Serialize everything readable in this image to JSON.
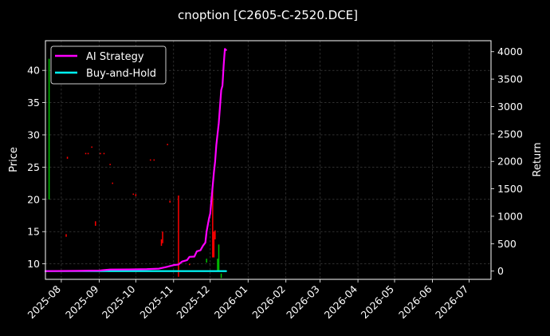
{
  "chart_data": {
    "type": "line",
    "title": "cnoption [C2605-C-2520.DCE]",
    "xlabel": "",
    "ylabel_left": "Price",
    "ylabel_right": "Return",
    "x_range": [
      "2025-07-19",
      "2026-07-19"
    ],
    "ylim_left": [
      7.6,
      44.6
    ],
    "ylim_right": [
      -150,
      4200
    ],
    "x_ticks": [
      "2025-08",
      "2025-09",
      "2025-10",
      "2025-11",
      "2025-12",
      "2026-01",
      "2026-02",
      "2026-03",
      "2026-04",
      "2026-05",
      "2026-06",
      "2026-07"
    ],
    "y_ticks_left": [
      10,
      15,
      20,
      25,
      30,
      35,
      40
    ],
    "y_ticks_right": [
      0,
      500,
      1000,
      1500,
      2000,
      2500,
      3000,
      3500,
      4000
    ],
    "grid": true,
    "legend_position": "top-left",
    "colors": {
      "background": "#000000",
      "grid": "#4a4a4a",
      "ai_strategy": "#ff00ff",
      "buy_and_hold": "#00ffff",
      "candle_up": "#00c000",
      "candle_down": "#ff0000"
    },
    "series": [
      {
        "name": "AI Strategy",
        "axis": "right",
        "points": [
          [
            "2025-07-19",
            0
          ],
          [
            "2025-08-15",
            5
          ],
          [
            "2025-09-01",
            10
          ],
          [
            "2025-09-10",
            28
          ],
          [
            "2025-09-25",
            30
          ],
          [
            "2025-10-10",
            35
          ],
          [
            "2025-10-20",
            45
          ],
          [
            "2025-10-26",
            75
          ],
          [
            "2025-11-01",
            110
          ],
          [
            "2025-11-05",
            120
          ],
          [
            "2025-11-08",
            175
          ],
          [
            "2025-11-12",
            200
          ],
          [
            "2025-11-14",
            260
          ],
          [
            "2025-11-18",
            265
          ],
          [
            "2025-11-20",
            360
          ],
          [
            "2025-11-23",
            380
          ],
          [
            "2025-11-25",
            460
          ],
          [
            "2025-11-27",
            520
          ],
          [
            "2025-11-28",
            720
          ],
          [
            "2025-11-30",
            960
          ],
          [
            "2025-12-01",
            1050
          ],
          [
            "2025-12-03",
            1550
          ],
          [
            "2025-12-04",
            1800
          ],
          [
            "2025-12-05",
            2000
          ],
          [
            "2025-12-06",
            2300
          ],
          [
            "2025-12-08",
            2700
          ],
          [
            "2025-12-09",
            3000
          ],
          [
            "2025-12-10",
            3300
          ],
          [
            "2025-12-11",
            3380
          ],
          [
            "2025-12-12",
            3750
          ],
          [
            "2025-12-13",
            4050
          ],
          [
            "2025-12-14",
            4030
          ]
        ]
      },
      {
        "name": "Buy-and-Hold",
        "axis": "right",
        "points": [
          [
            "2025-07-19",
            0
          ],
          [
            "2025-12-14",
            0
          ]
        ]
      }
    ],
    "candles": [
      {
        "date": "2025-07-22",
        "low": 20,
        "high": 41.8,
        "dir": "up"
      },
      {
        "date": "2025-08-05",
        "low": 14.2,
        "high": 14.6,
        "dir": "down"
      },
      {
        "date": "2025-08-06",
        "low": 26.3,
        "high": 26.6,
        "dir": "down"
      },
      {
        "date": "2025-08-21",
        "low": 27.0,
        "high": 27.2,
        "dir": "down"
      },
      {
        "date": "2025-08-23",
        "low": 27.0,
        "high": 27.2,
        "dir": "down"
      },
      {
        "date": "2025-08-26",
        "low": 28.0,
        "high": 28.2,
        "dir": "down"
      },
      {
        "date": "2025-08-29",
        "low": 15.9,
        "high": 16.6,
        "dir": "down"
      },
      {
        "date": "2025-09-02",
        "low": 27.0,
        "high": 27.2,
        "dir": "down"
      },
      {
        "date": "2025-09-05",
        "low": 27.0,
        "high": 27.2,
        "dir": "down"
      },
      {
        "date": "2025-09-10",
        "low": 25.3,
        "high": 25.5,
        "dir": "down"
      },
      {
        "date": "2025-09-12",
        "low": 22.4,
        "high": 22.6,
        "dir": "down"
      },
      {
        "date": "2025-09-29",
        "low": 20.7,
        "high": 20.9,
        "dir": "down"
      },
      {
        "date": "2025-10-01",
        "low": 20.5,
        "high": 20.8,
        "dir": "down"
      },
      {
        "date": "2025-10-13",
        "low": 26.0,
        "high": 26.2,
        "dir": "down"
      },
      {
        "date": "2025-10-16",
        "low": 26.0,
        "high": 26.2,
        "dir": "down"
      },
      {
        "date": "2025-10-22",
        "low": 12.8,
        "high": 13.8,
        "dir": "down"
      },
      {
        "date": "2025-10-23",
        "low": 13.2,
        "high": 15.0,
        "dir": "down"
      },
      {
        "date": "2025-10-27",
        "low": 28.4,
        "high": 28.6,
        "dir": "down"
      },
      {
        "date": "2025-10-29",
        "low": 19.5,
        "high": 19.8,
        "dir": "down"
      },
      {
        "date": "2025-11-05",
        "low": 8.0,
        "high": 20.6,
        "dir": "down"
      },
      {
        "date": "2025-11-14",
        "low": 9.8,
        "high": 10.0,
        "dir": "down"
      },
      {
        "date": "2025-11-28",
        "low": 10.2,
        "high": 10.8,
        "dir": "up"
      },
      {
        "date": "2025-12-03",
        "low": 11.0,
        "high": 21.5,
        "dir": "down"
      },
      {
        "date": "2025-12-04",
        "low": 11.0,
        "high": 15.0,
        "dir": "down"
      },
      {
        "date": "2025-12-05",
        "low": 13.8,
        "high": 15.2,
        "dir": "down"
      },
      {
        "date": "2025-12-07",
        "low": 9.0,
        "high": 10.8,
        "dir": "up"
      },
      {
        "date": "2025-12-08",
        "low": 9.0,
        "high": 13.0,
        "dir": "up"
      },
      {
        "date": "2025-12-10",
        "low": 7.8,
        "high": 8.5,
        "dir": "up"
      }
    ]
  }
}
